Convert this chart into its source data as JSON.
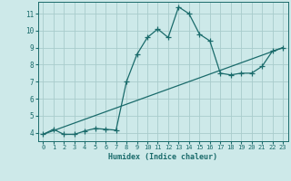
{
  "xlabel": "Humidex (Indice chaleur)",
  "background_color": "#cde9e9",
  "line_color": "#1a6b6b",
  "grid_color": "#a8cccc",
  "xlim": [
    -0.5,
    23.5
  ],
  "ylim": [
    3.5,
    11.7
  ],
  "xticks": [
    0,
    1,
    2,
    3,
    4,
    5,
    6,
    7,
    8,
    9,
    10,
    11,
    12,
    13,
    14,
    15,
    16,
    17,
    18,
    19,
    20,
    21,
    22,
    23
  ],
  "yticks": [
    4,
    5,
    6,
    7,
    8,
    9,
    10,
    11
  ],
  "curve1_x": [
    0,
    1,
    2,
    3,
    4,
    5,
    6,
    7,
    8,
    9,
    10,
    11,
    12,
    13,
    14,
    15,
    16,
    17,
    18,
    19,
    20,
    21,
    22,
    23
  ],
  "curve1_y": [
    3.9,
    4.2,
    3.9,
    3.9,
    4.1,
    4.25,
    4.2,
    4.15,
    7.0,
    8.6,
    9.6,
    10.1,
    9.6,
    11.4,
    11.0,
    9.8,
    9.4,
    7.5,
    7.4,
    7.5,
    7.5,
    7.9,
    8.8,
    9.0
  ],
  "curve2_x": [
    0,
    23
  ],
  "curve2_y": [
    3.9,
    9.0
  ],
  "marker": "+",
  "marker_size": 4,
  "line_width": 0.9,
  "xlabel_fontsize": 6.0,
  "tick_fontsize": 5.0
}
